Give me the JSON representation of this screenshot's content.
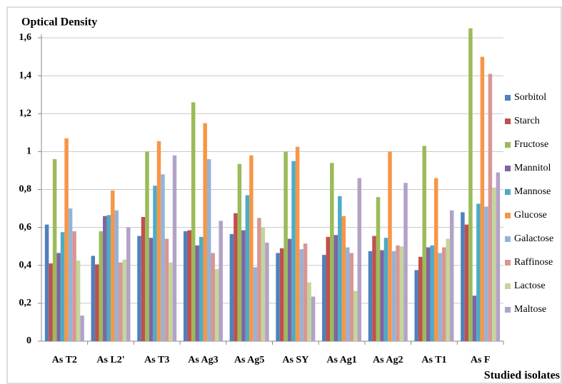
{
  "chart_data": {
    "type": "bar",
    "title": "Optical Density",
    "x_label": "Studied isolates",
    "categories": [
      "As T2",
      "As L2'",
      "As T3",
      "As Ag3",
      "As Ag5",
      "As SY",
      "As Ag1",
      "As Ag2",
      "As T1",
      "As F"
    ],
    "series": [
      {
        "name": "Sorbitol",
        "color": "#4F81BD",
        "values": [
          0.615,
          0.45,
          0.555,
          0.58,
          0.565,
          0.465,
          0.455,
          0.475,
          0.375,
          0.68
        ]
      },
      {
        "name": "Starch",
        "color": "#C0504D",
        "values": [
          0.41,
          0.405,
          0.655,
          0.585,
          0.675,
          0.49,
          0.55,
          0.555,
          0.445,
          0.615
        ]
      },
      {
        "name": "Fructose",
        "color": "#9BBB59",
        "values": [
          0.96,
          0.58,
          1.0,
          1.26,
          0.935,
          1.0,
          0.94,
          0.76,
          1.03,
          1.65
        ]
      },
      {
        "name": "Mannitol",
        "color": "#8064A2",
        "values": [
          0.465,
          0.66,
          0.545,
          0.505,
          0.585,
          0.54,
          0.56,
          0.48,
          0.495,
          0.24
        ]
      },
      {
        "name": "Mannose",
        "color": "#4BACC6",
        "values": [
          0.575,
          0.665,
          0.82,
          0.55,
          0.77,
          0.95,
          0.765,
          0.545,
          0.505,
          0.725
        ]
      },
      {
        "name": "Glucose",
        "color": "#F79646",
        "values": [
          1.07,
          0.795,
          1.055,
          1.15,
          0.98,
          1.025,
          0.66,
          1.0,
          0.86,
          1.5
        ]
      },
      {
        "name": "Galactose",
        "color": "#95B3D7",
        "values": [
          0.7,
          0.69,
          0.88,
          0.96,
          0.39,
          0.485,
          0.495,
          0.475,
          0.465,
          0.71
        ]
      },
      {
        "name": "Raffinose",
        "color": "#D99694",
        "values": [
          0.58,
          0.415,
          0.54,
          0.465,
          0.65,
          0.515,
          0.465,
          0.505,
          0.495,
          1.41
        ]
      },
      {
        "name": "Lactose",
        "color": "#C3D69B",
        "values": [
          0.425,
          0.43,
          0.415,
          0.38,
          0.6,
          0.31,
          0.265,
          0.5,
          0.54,
          0.81
        ]
      },
      {
        "name": "Maltose",
        "color": "#B3A2C7",
        "values": [
          0.135,
          0.6,
          0.98,
          0.635,
          0.52,
          0.235,
          0.86,
          0.835,
          0.69,
          0.89
        ]
      }
    ],
    "ylim": [
      0,
      1.6
    ],
    "yticks": [
      0,
      {
        "value": 0.2,
        "label": "0,2"
      },
      {
        "value": 0.4,
        "label": "0,4"
      },
      {
        "value": 0.6,
        "label": "0,6"
      },
      {
        "value": 0.8,
        "label": "0,8"
      },
      1,
      {
        "value": 1.2,
        "label": "1,2"
      },
      {
        "value": 1.4,
        "label": "1,4"
      },
      {
        "value": 1.6,
        "label": "1,6"
      }
    ],
    "grid": true,
    "legend": "right"
  }
}
